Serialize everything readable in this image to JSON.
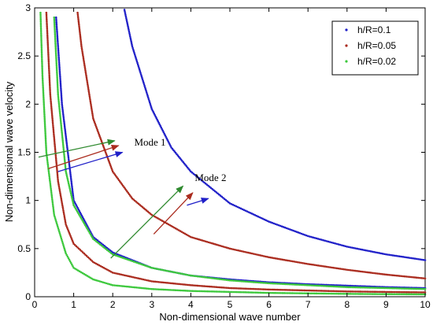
{
  "chart_data": {
    "type": "scatter",
    "xlabel": "Non-dimensional wave number",
    "ylabel": "Non-dimensional wave velocity",
    "xlim": [
      0,
      10
    ],
    "ylim": [
      0,
      3
    ],
    "xticks": [
      "0",
      "1",
      "2",
      "3",
      "4",
      "5",
      "6",
      "7",
      "8",
      "9",
      "10"
    ],
    "yticks": [
      "0",
      "0.5",
      "1",
      "1.5",
      "2",
      "2.5",
      "3"
    ],
    "grid": false,
    "legend_position": "top-right",
    "series": [
      {
        "name": "h/R=0.1",
        "color": "#1f1fc8",
        "modes": [
          {
            "x": [
              2.3,
              2.5,
              3,
              3.5,
              4,
              5,
              6,
              7,
              8,
              9,
              10
            ],
            "y": [
              2.98,
              2.6,
              1.95,
              1.55,
              1.3,
              0.97,
              0.78,
              0.63,
              0.52,
              0.44,
              0.38
            ]
          },
          {
            "x": [
              0.55,
              0.7,
              1,
              1.5,
              2,
              3,
              4,
              5,
              6,
              7,
              8,
              9,
              10
            ],
            "y": [
              2.9,
              2.0,
              1.0,
              0.62,
              0.46,
              0.3,
              0.22,
              0.18,
              0.15,
              0.13,
              0.115,
              0.1,
              0.09
            ]
          }
        ]
      },
      {
        "name": "h/R=0.05",
        "color": "#aa2b1e",
        "modes": [
          {
            "x": [
              1.1,
              1.2,
              1.5,
              2,
              2.5,
              3,
              4,
              5,
              6,
              7,
              8,
              9,
              10
            ],
            "y": [
              2.95,
              2.6,
              1.85,
              1.3,
              1.02,
              0.85,
              0.62,
              0.5,
              0.41,
              0.34,
              0.28,
              0.23,
              0.19
            ]
          },
          {
            "x": [
              0.3,
              0.4,
              0.6,
              0.8,
              1,
              1.5,
              2,
              3,
              4,
              5,
              6,
              7,
              8,
              9,
              10
            ],
            "y": [
              2.95,
              2.1,
              1.2,
              0.75,
              0.55,
              0.36,
              0.25,
              0.16,
              0.12,
              0.09,
              0.075,
              0.065,
              0.055,
              0.05,
              0.045
            ]
          }
        ]
      },
      {
        "name": "h/R=0.02",
        "color": "#3cc83c",
        "modes": [
          {
            "x": [
              0.5,
              0.6,
              0.8,
              1,
              1.5,
              2,
              3,
              4,
              5,
              6,
              7,
              8,
              9,
              10
            ],
            "y": [
              2.9,
              2.1,
              1.3,
              0.95,
              0.6,
              0.44,
              0.3,
              0.22,
              0.17,
              0.14,
              0.12,
              0.1,
              0.09,
              0.08
            ]
          },
          {
            "x": [
              0.15,
              0.2,
              0.3,
              0.5,
              0.8,
              1,
              1.5,
              2,
              3,
              4,
              5,
              6,
              7,
              8,
              9,
              10
            ],
            "y": [
              2.95,
              2.3,
              1.5,
              0.85,
              0.45,
              0.3,
              0.18,
              0.12,
              0.08,
              0.06,
              0.05,
              0.04,
              0.035,
              0.03,
              0.027,
              0.025
            ]
          }
        ]
      }
    ],
    "annotations": [
      {
        "text": "Mode 1",
        "x": 2.55,
        "y": 1.57,
        "arrows": [
          {
            "from": [
              0.1,
              1.45
            ],
            "to": [
              2.05,
              1.62
            ],
            "color": "#2f8a2f"
          },
          {
            "from": [
              0.35,
              1.33
            ],
            "to": [
              2.15,
              1.57
            ],
            "color": "#aa2b1e"
          },
          {
            "from": [
              0.6,
              1.3
            ],
            "to": [
              2.25,
              1.5
            ],
            "color": "#1f1fc8"
          }
        ]
      },
      {
        "text": "Mode 2",
        "x": 4.1,
        "y": 1.2,
        "arrows": [
          {
            "from": [
              1.95,
              0.4
            ],
            "to": [
              3.8,
              1.15
            ],
            "color": "#2f8a2f"
          },
          {
            "from": [
              3.05,
              0.65
            ],
            "to": [
              4.05,
              1.08
            ],
            "color": "#aa2b1e"
          },
          {
            "from": [
              3.9,
              0.95
            ],
            "to": [
              4.45,
              1.02
            ],
            "color": "#1f1fc8"
          }
        ]
      }
    ]
  }
}
